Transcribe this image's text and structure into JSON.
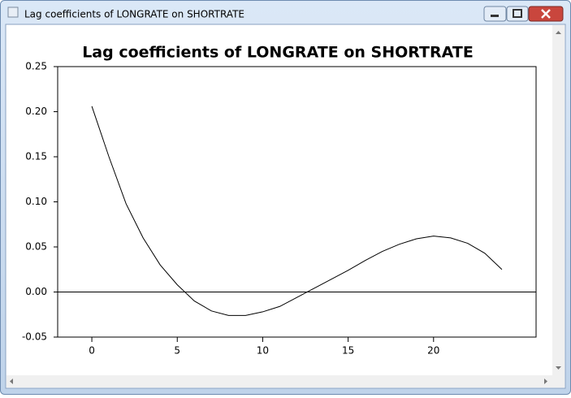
{
  "window": {
    "title": "Lag coefficients of LONGRATE on SHORTRATE"
  },
  "chart_data": {
    "type": "line",
    "title": "Lag coefficients of LONGRATE on SHORTRATE",
    "x": [
      0,
      1,
      2,
      3,
      4,
      5,
      6,
      7,
      8,
      9,
      10,
      11,
      12,
      13,
      14,
      15,
      16,
      17,
      18,
      19,
      20,
      21,
      22,
      23,
      24
    ],
    "series": [
      {
        "color": "#000000",
        "values": [
          0.206,
          0.15,
          0.098,
          0.06,
          0.03,
          0.008,
          -0.01,
          -0.021,
          -0.026,
          -0.026,
          -0.022,
          -0.016,
          -0.006,
          0.004,
          0.014,
          0.024,
          0.035,
          0.045,
          0.053,
          0.059,
          0.062,
          0.06,
          0.054,
          0.043,
          0.025
        ]
      }
    ],
    "xlim": [
      -2,
      26
    ],
    "xticks": [
      0,
      5,
      10,
      15,
      20
    ],
    "ylim": [
      -0.05,
      0.25
    ],
    "yticks": [
      {
        "value": -0.05,
        "label": "-0.05"
      },
      {
        "value": 0,
        "label": "0.00"
      },
      {
        "value": 0.05,
        "label": "0.05"
      },
      {
        "value": 0.1,
        "label": "0.10"
      },
      {
        "value": 0.15,
        "label": "0.15"
      },
      {
        "value": 0.2,
        "label": "0.20"
      },
      {
        "value": 0.25,
        "label": "0.25"
      }
    ],
    "zero_line": true
  }
}
